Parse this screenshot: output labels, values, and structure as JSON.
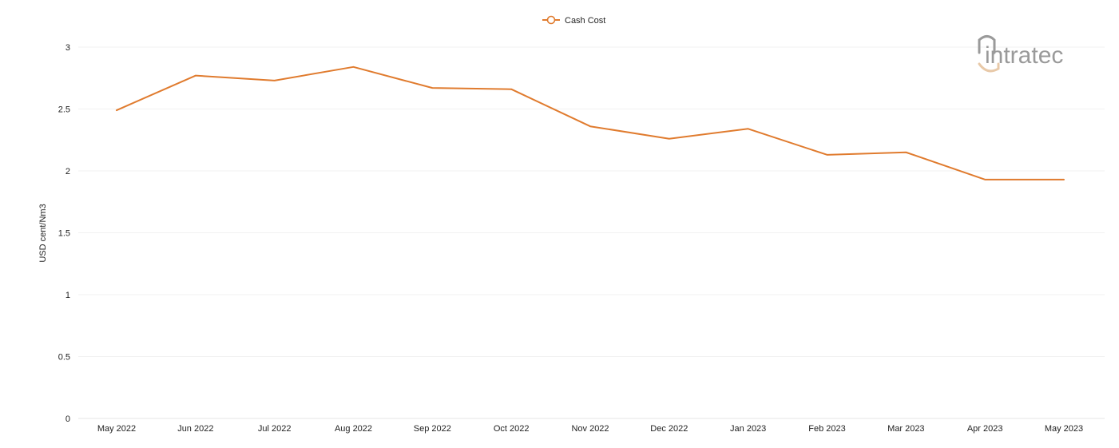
{
  "brand": {
    "logo_text": "intratec",
    "logo_color": "#9a9a9a",
    "logo_accent_color": "#e8c9a8"
  },
  "chart_data": {
    "type": "line",
    "categories": [
      "May 2022",
      "Jun 2022",
      "Jul 2022",
      "Aug 2022",
      "Sep 2022",
      "Oct 2022",
      "Nov 2022",
      "Dec 2022",
      "Jan 2023",
      "Feb 2023",
      "Mar 2023",
      "Apr 2023",
      "May 2023"
    ],
    "series": [
      {
        "name": "Cash Cost",
        "color": "#e07b2e",
        "values": [
          2.49,
          2.77,
          2.73,
          2.84,
          2.67,
          2.66,
          2.36,
          2.26,
          2.34,
          2.13,
          2.15,
          1.93,
          1.93
        ]
      }
    ],
    "xlabel": "",
    "ylabel": "USD cent/Nm3",
    "ylim": [
      0,
      3
    ],
    "yticks": [
      0,
      0.5,
      1,
      1.5,
      2,
      2.5,
      3
    ],
    "ytick_labels": [
      "0",
      "0.5",
      "1",
      "1.5",
      "2",
      "2.5",
      "3"
    ],
    "grid": true,
    "legend_position": "top-center"
  }
}
